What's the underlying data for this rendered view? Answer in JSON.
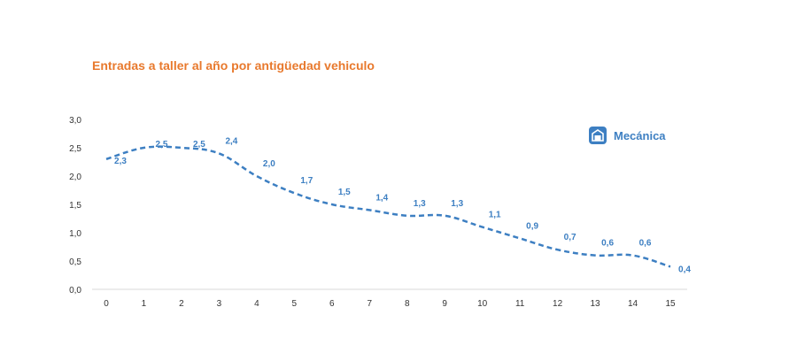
{
  "chart_data": {
    "type": "line",
    "title": "Entradas a taller al año por antigüedad vehiculo",
    "xlabel": "",
    "ylabel": "",
    "x": [
      "0",
      "1",
      "2",
      "3",
      "4",
      "5",
      "6",
      "7",
      "8",
      "9",
      "10",
      "11",
      "12",
      "13",
      "14",
      "15"
    ],
    "ylim": [
      0,
      3.0
    ],
    "yticks": [
      "0,0",
      "0,5",
      "1,0",
      "1,5",
      "2,0",
      "2,5",
      "3,0"
    ],
    "series": [
      {
        "name": "Mecánica",
        "values": [
          2.3,
          2.5,
          2.5,
          2.4,
          2.0,
          1.7,
          1.5,
          1.4,
          1.3,
          1.3,
          1.1,
          0.9,
          0.7,
          0.6,
          0.6,
          0.4
        ],
        "labels": [
          "2,3",
          "2,5",
          "2,5",
          "2,4",
          "2,0",
          "1,7",
          "1,5",
          "1,4",
          "1,3",
          "1,3",
          "1,1",
          "0,9",
          "0,7",
          "0,6",
          "0,6",
          "0,4"
        ]
      }
    ],
    "legend_position": "top-right",
    "grid": false,
    "line_style": "dashed",
    "colors": {
      "title": "#e8792d",
      "series": "#3d7fc2",
      "axis_text": "#333333"
    },
    "legend_icon": "garage-icon"
  }
}
